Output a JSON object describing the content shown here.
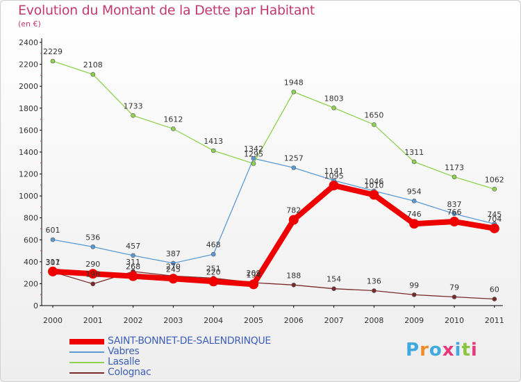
{
  "title": "Evolution du Montant de la Dette par Habitant",
  "subtitle": "(en €)",
  "logo": {
    "text": "Proxiti",
    "colors": [
      "#3fa9e0",
      "#f28c28",
      "#3fa9e0",
      "#e83a7a",
      "#3fa9e0",
      "#8cc63f",
      "#e83a7a"
    ]
  },
  "chart_data": {
    "type": "line",
    "categories": [
      "2000",
      "2001",
      "2002",
      "2003",
      "2004",
      "2005",
      "2006",
      "2007",
      "2008",
      "2009",
      "2010",
      "2011"
    ],
    "ylim": [
      0,
      2400
    ],
    "yticks": [
      "0",
      "200",
      "400",
      "600",
      "800",
      "1000",
      "1200",
      "1400",
      "1600",
      "1800",
      "2000",
      "2200",
      "2400"
    ],
    "grid": false,
    "legend_position": "bottom",
    "series": [
      {
        "name": "SAINT-BONNET-DE-SALENDRINQUE",
        "color": "#ee0000",
        "thick": true,
        "values": [
          311,
          290,
          268,
          245,
          220,
          194,
          782,
          1095,
          1010,
          746,
          766,
          704
        ],
        "labels": [
          "311",
          "290",
          "268",
          "245",
          "220",
          "194",
          "782",
          "1095",
          "1010",
          "746",
          "766",
          "704"
        ]
      },
      {
        "name": "Vabres",
        "color": "#5b9bd5",
        "thick": false,
        "values": [
          601,
          536,
          457,
          387,
          468,
          1342,
          1257,
          1141,
          1046,
          954,
          837,
          745
        ],
        "labels": [
          "601",
          "536",
          "457",
          "387",
          "468",
          "1342",
          "1257",
          "1141",
          "1046",
          "954",
          "837",
          "745"
        ]
      },
      {
        "name": "Lasalle",
        "color": "#8ed24f",
        "thick": false,
        "values": [
          2229,
          2108,
          1733,
          1612,
          1413,
          1295,
          1948,
          1803,
          1650,
          1311,
          1173,
          1062
        ],
        "labels": [
          "2229",
          "2108",
          "1733",
          "1612",
          "1413",
          "1295",
          "1948",
          "1803",
          "1650",
          "1311",
          "1173",
          "1062"
        ]
      },
      {
        "name": "Colognac",
        "color": "#7a2a2a",
        "thick": false,
        "values": [
          307,
          198,
          311,
          270,
          251,
          209,
          188,
          154,
          136,
          99,
          79,
          60
        ],
        "labels": [
          "307",
          "198",
          "311",
          "270",
          "251",
          "209",
          "188",
          "154",
          "136",
          "99",
          "79",
          "60"
        ]
      }
    ]
  }
}
